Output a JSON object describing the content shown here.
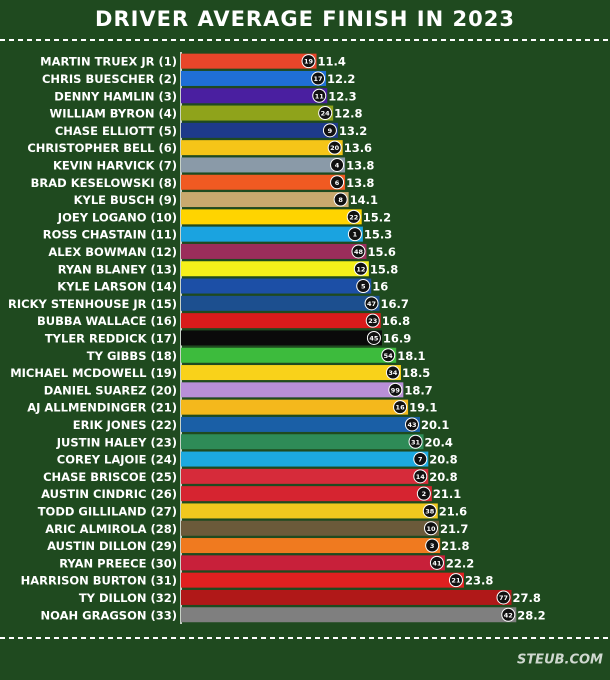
{
  "chart_data": {
    "type": "barh",
    "title": "DRIVER AVERAGE FINISH IN 2023",
    "footer": "STEUB.COM",
    "categories": [
      "MARTIN TRUEX JR (1)",
      "CHRIS BUESCHER (2)",
      "DENNY HAMLIN (3)",
      "WILLIAM BYRON (4)",
      "CHASE ELLIOTT (5)",
      "CHRISTOPHER BELL (6)",
      "KEVIN HARVICK (7)",
      "BRAD KESELOWSKI (8)",
      "KYLE BUSCH (9)",
      "JOEY LOGANO (10)",
      "ROSS CHASTAIN (11)",
      "ALEX BOWMAN (12)",
      "RYAN BLANEY (13)",
      "KYLE LARSON (14)",
      "RICKY STENHOUSE JR (15)",
      "BUBBA WALLACE (16)",
      "TYLER REDDICK (17)",
      "TY GIBBS (18)",
      "MICHAEL MCDOWELL (19)",
      "DANIEL SUAREZ (20)",
      "AJ ALLMENDINGER (21)",
      "ERIK JONES (22)",
      "JUSTIN HALEY (23)",
      "COREY LAJOIE (24)",
      "CHASE BRISCOE (25)",
      "AUSTIN CINDRIC (26)",
      "TODD GILLILAND (27)",
      "ARIC ALMIROLA (28)",
      "AUSTIN DILLON (29)",
      "RYAN PREECE (30)",
      "HARRISON BURTON (31)",
      "TY DILLON (32)",
      "NOAH GRAGSON (33)"
    ],
    "values": [
      11.4,
      12.2,
      12.3,
      12.8,
      13.2,
      13.6,
      13.8,
      13.8,
      14.1,
      15.2,
      15.3,
      15.6,
      15.8,
      16,
      16.7,
      16.8,
      16.9,
      18.1,
      18.5,
      18.7,
      19.1,
      20.1,
      20.4,
      20.8,
      20.8,
      21.1,
      21.6,
      21.7,
      21.8,
      22.2,
      23.8,
      27.8,
      28.2
    ],
    "car_numbers": [
      "19",
      "17",
      "11",
      "24",
      "9",
      "20",
      "4",
      "6",
      "8",
      "22",
      "1",
      "48",
      "12",
      "5",
      "47",
      "23",
      "45",
      "54",
      "34",
      "99",
      "16",
      "43",
      "31",
      "7",
      "14",
      "2",
      "38",
      "10",
      "3",
      "41",
      "21",
      "77",
      "42"
    ],
    "colors": [
      "#e8452a",
      "#1f6fd6",
      "#4a1fa0",
      "#8fa31b",
      "#1e3a8a",
      "#f5c518",
      "#8a9aa8",
      "#f05a22",
      "#c9a96e",
      "#ffd400",
      "#1aa3e0",
      "#9b2d5b",
      "#f5f01a",
      "#1c4fa6",
      "#1c4f8f",
      "#d91b1b",
      "#0a0a0a",
      "#3dbb3d",
      "#f9d21a",
      "#b88fd8",
      "#f4b81c",
      "#1a5fa6",
      "#2e8b57",
      "#1ca9e0",
      "#d62b3a",
      "#d62430",
      "#f0c81e",
      "#6b5a3a",
      "#f07a1f",
      "#c8203a",
      "#e02020",
      "#b01818",
      "#7f7f7f"
    ],
    "xlim": [
      0,
      36
    ]
  }
}
